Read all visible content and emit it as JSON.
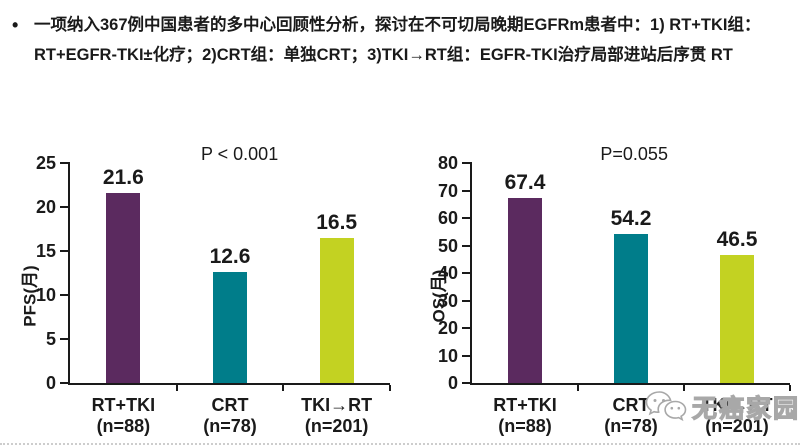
{
  "header": {
    "bullet": "•",
    "line1": "一项纳入367例中国患者的多中心回顾性分析，探讨在不可切局晚期EGFRm患者中：1) RT+TKI组：",
    "line2": "RT+EGFR-TKI±化疗；2)CRT组：单独CRT；3)TKI→RT组：EGFR-TKI治疗局部进站后序贯 RT"
  },
  "colors": {
    "bar_purple": "#5b2a5f",
    "bar_teal": "#007d8a",
    "bar_yellow_green": "#c3d222",
    "axis_black": "#1a1a1a",
    "watermark_gray": "#a8a8a8"
  },
  "watermark": {
    "icon": "wechat-icon",
    "text": "无癌家园"
  },
  "chart_data": [
    {
      "type": "bar",
      "title": "P < 0.001",
      "p_value": "P < 0.001",
      "ylabel": "PFS(月)",
      "xlabel": "",
      "categories": [
        "RT+TKI",
        "CRT",
        "TKI→RT"
      ],
      "category_sublabels": [
        "(n=88)",
        "(n=78)",
        "(n=201)"
      ],
      "values": [
        21.6,
        12.6,
        16.5
      ],
      "bar_colors": [
        "#5b2a5f",
        "#007d8a",
        "#c3d222"
      ],
      "ylim": [
        0,
        25
      ],
      "yticks": [
        0,
        5,
        10,
        15,
        20,
        25
      ],
      "grid": false,
      "legend": "none"
    },
    {
      "type": "bar",
      "title": "P=0.055",
      "p_value": "P=0.055",
      "ylabel": "OS(月)",
      "xlabel": "",
      "categories": [
        "RT+TKI",
        "CRT",
        "TKI→RT"
      ],
      "category_sublabels": [
        "(n=88)",
        "(n=78)",
        "(n=201)"
      ],
      "values": [
        67.4,
        54.2,
        46.5
      ],
      "bar_colors": [
        "#5b2a5f",
        "#007d8a",
        "#c3d222"
      ],
      "ylim": [
        0,
        80
      ],
      "yticks": [
        0,
        10,
        20,
        30,
        40,
        50,
        60,
        70,
        80
      ],
      "grid": false,
      "legend": "none"
    }
  ]
}
